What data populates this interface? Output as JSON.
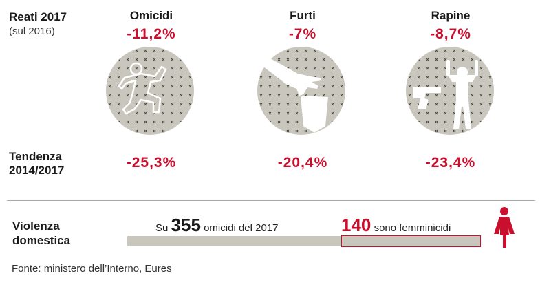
{
  "header": {
    "title": "Reati 2017",
    "subtitle": "(sul 2016)"
  },
  "trend_label_line1": "Tendenza",
  "trend_label_line2": "2014/2017",
  "domestic": {
    "label_line1": "Violenza",
    "label_line2": "domestica",
    "total_prefix": "Su",
    "total_value": "355",
    "total_suffix": "omicidi del 2017",
    "femicide_value": "140",
    "femicide_suffix": "sono femminicidi"
  },
  "source": "Fonte: ministero dell’Interno, Eures",
  "colors": {
    "accent_red": "#c8102e",
    "circle_gray": "#c9c7bd",
    "text": "#1a1a1a"
  },
  "icons": [
    "crime-scene-outline-icon",
    "hand-stealing-bag-icon",
    "gun-hands-up-icon",
    "female-figure-icon"
  ],
  "chart_data": {
    "type": "table",
    "categories": [
      "Omicidi",
      "Furti",
      "Rapine"
    ],
    "series": [
      {
        "name": "Reati 2017 (sul 2016)",
        "values": [
          -11.2,
          -7,
          -8.7
        ],
        "labels": [
          "-11,2%",
          "-7%",
          "-8,7%"
        ]
      },
      {
        "name": "Tendenza 2014/2017",
        "values": [
          -25.3,
          -20.4,
          -23.4
        ],
        "labels": [
          "-25,3%",
          "-20,4%",
          "-23,4%"
        ]
      }
    ],
    "domestic_violence": {
      "total_homicides_2017": 355,
      "femicides": 140
    }
  }
}
